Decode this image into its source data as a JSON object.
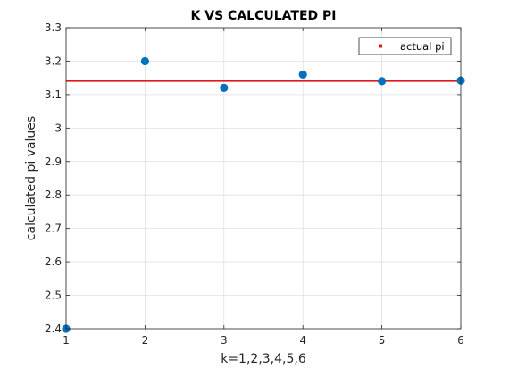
{
  "chart_data": {
    "type": "scatter",
    "title": "K VS CALCULATED PI",
    "xlabel": "k=1,2,3,4,5,6",
    "ylabel": "calculated pi values",
    "xlim": [
      1,
      6
    ],
    "ylim": [
      2.4,
      3.3
    ],
    "xticks": [
      "1",
      "2",
      "3",
      "4",
      "5",
      "6"
    ],
    "yticks": [
      "2.4",
      "2.5",
      "2.6",
      "2.7",
      "2.8",
      "2.9",
      "3",
      "3.1",
      "3.2",
      "3.3"
    ],
    "grid": true,
    "legend_position": "top-right",
    "series": [
      {
        "type": "scatter",
        "color": "#0072BD",
        "x": [
          1,
          2,
          3,
          4,
          5,
          6
        ],
        "y": [
          2.4,
          3.2,
          3.12,
          3.16,
          3.14,
          3.142
        ]
      },
      {
        "name": "actual pi",
        "type": "line",
        "color": "#E0191C",
        "x": [
          1,
          6
        ],
        "y": [
          3.14159,
          3.14159
        ]
      }
    ]
  }
}
